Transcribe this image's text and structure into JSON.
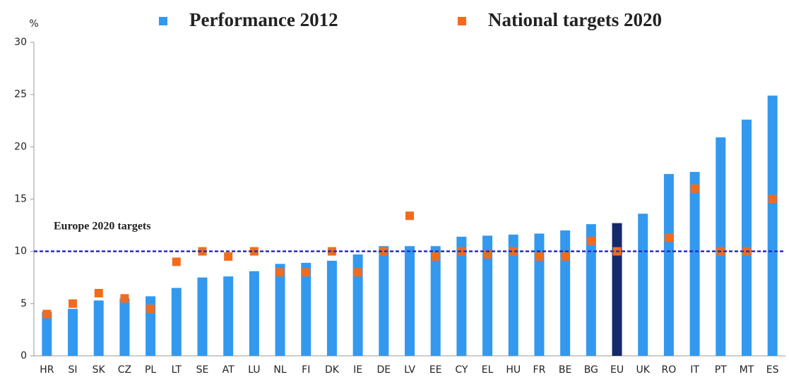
{
  "chart_data": {
    "type": "bar",
    "y_label": "%",
    "categories": [
      "HR",
      "SI",
      "SK",
      "CZ",
      "PL",
      "LT",
      "SE",
      "AT",
      "LU",
      "NL",
      "FI",
      "DK",
      "IE",
      "DE",
      "LV",
      "EE",
      "CY",
      "EL",
      "HU",
      "FR",
      "BE",
      "BG",
      "EU",
      "UK",
      "RO",
      "IT",
      "PT",
      "MT",
      "ES"
    ],
    "series": [
      {
        "name": "Performance 2012",
        "type": "bar",
        "color": "#3399ee",
        "colors": [
          "#3399ee",
          "#3399ee",
          "#3399ee",
          "#3399ee",
          "#3399ee",
          "#3399ee",
          "#3399ee",
          "#3399ee",
          "#3399ee",
          "#3399ee",
          "#3399ee",
          "#3399ee",
          "#3399ee",
          "#3399ee",
          "#3399ee",
          "#3399ee",
          "#3399ee",
          "#3399ee",
          "#3399ee",
          "#3399ee",
          "#3399ee",
          "#3399ee",
          "#14296b",
          "#3399ee",
          "#3399ee",
          "#3399ee",
          "#3399ee",
          "#3399ee",
          "#3399ee"
        ],
        "values": [
          4.2,
          4.5,
          5.3,
          5.5,
          5.7,
          6.5,
          7.5,
          7.6,
          8.1,
          8.8,
          8.9,
          9.1,
          9.7,
          10.5,
          10.5,
          10.5,
          11.4,
          11.5,
          11.6,
          11.7,
          12.0,
          12.6,
          12.7,
          13.6,
          17.4,
          17.6,
          20.9,
          22.6,
          24.9
        ]
      },
      {
        "name": "National targets 2020",
        "type": "marker",
        "color": "#f26b1d",
        "values": [
          4.0,
          5.0,
          6.0,
          5.5,
          4.5,
          9.0,
          10,
          9.5,
          10,
          8.0,
          8.0,
          10,
          8.0,
          10,
          13.4,
          9.5,
          10,
          9.7,
          10,
          9.5,
          9.5,
          11,
          10,
          null,
          11.3,
          16,
          10,
          10,
          15
        ]
      }
    ],
    "annotations": [
      {
        "text": "Europe 2020 targets",
        "y": 10,
        "color": "#2a2ad0"
      }
    ],
    "ylim": [
      0,
      30
    ],
    "yticks": [
      0,
      5,
      10,
      15,
      20,
      25,
      30
    ],
    "grid": false
  }
}
